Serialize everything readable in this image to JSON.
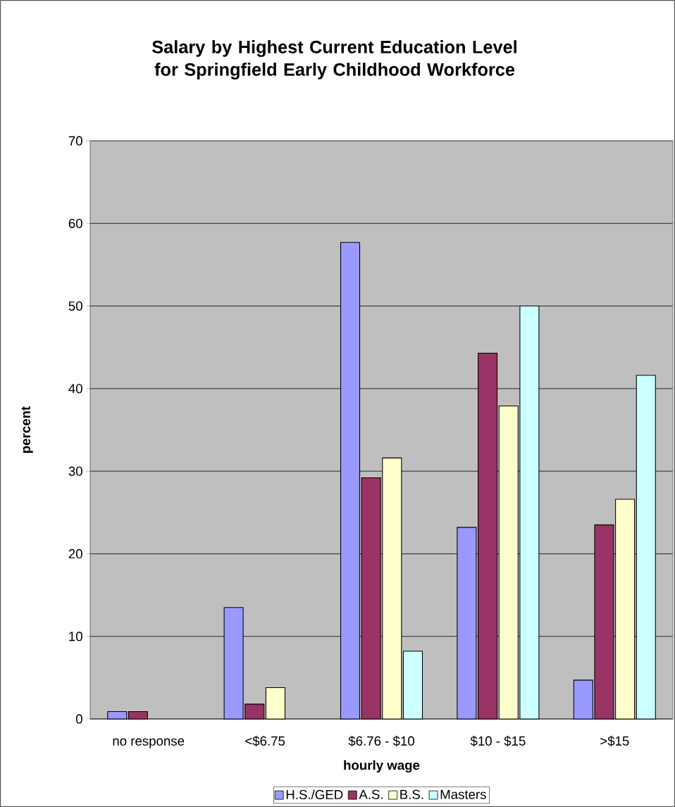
{
  "chart_data": {
    "type": "bar",
    "title": "Salary by Highest Current Education Level for Springfield Early Childhood Workforce",
    "xlabel": "hourly wage",
    "ylabel": "percent",
    "categories": [
      "no response",
      "<$6.75",
      "$6.76 - $10",
      "$10 - $15",
      ">$15"
    ],
    "series": [
      {
        "name": "H.S./GED",
        "color": "#9999ff",
        "values": [
          0.9,
          13.5,
          57.7,
          23.2,
          4.7
        ]
      },
      {
        "name": "A.S.",
        "color": "#993366",
        "values": [
          0.9,
          1.8,
          29.2,
          44.3,
          23.5
        ]
      },
      {
        "name": "B.S.",
        "color": "#ffffcc",
        "values": [
          null,
          3.8,
          31.6,
          37.9,
          26.6
        ]
      },
      {
        "name": "Masters",
        "color": "#ccffff",
        "values": [
          null,
          null,
          8.2,
          50.0,
          41.6
        ]
      }
    ],
    "ylim": [
      0,
      70
    ],
    "yticks": [
      0,
      10,
      20,
      30,
      40,
      50,
      60,
      70
    ],
    "grid": "y",
    "legend": "bottom"
  }
}
